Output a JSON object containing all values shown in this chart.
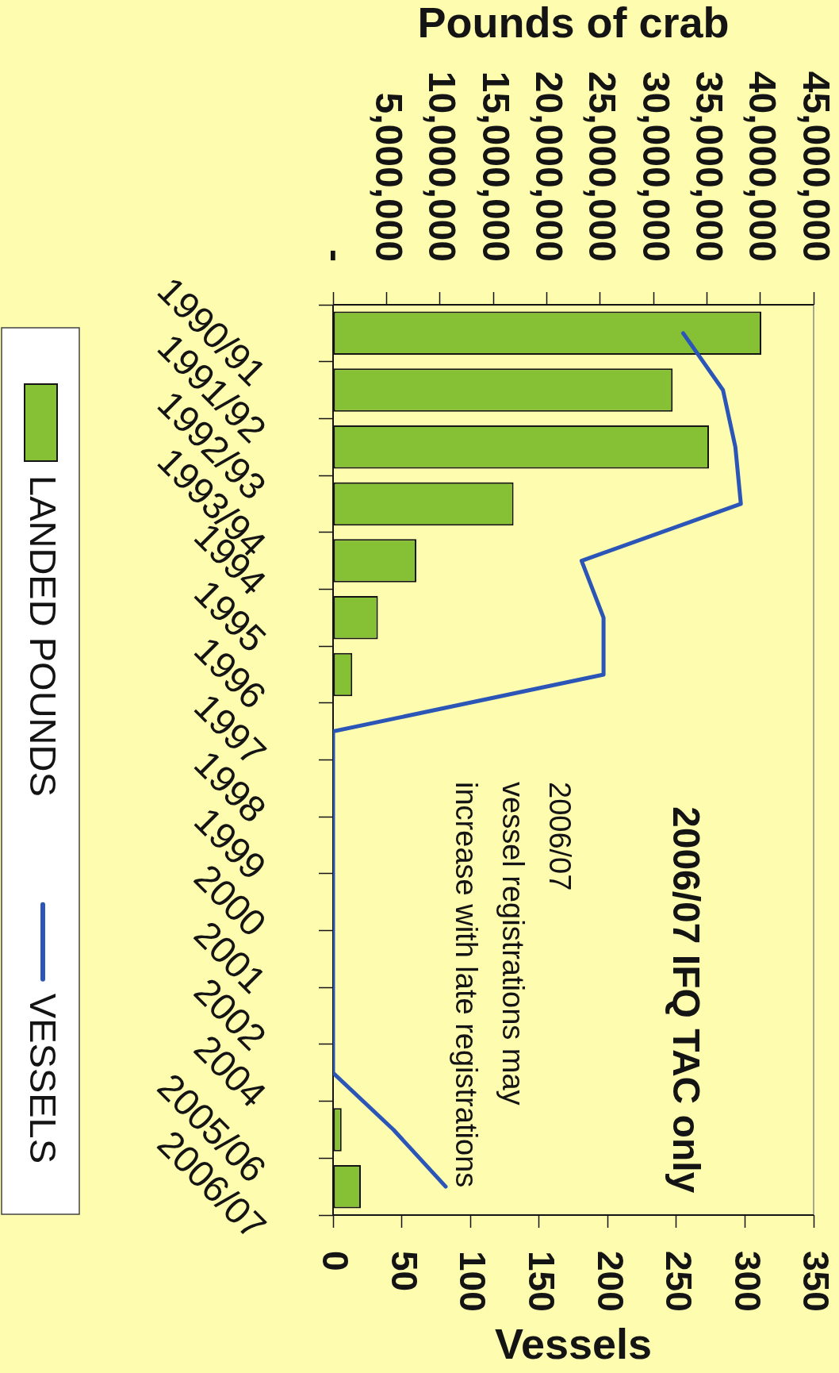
{
  "chart_data": {
    "type": "bar",
    "orientation": "horizontal",
    "categories": [
      "1990/91",
      "1991/92",
      "1992/93",
      "1993/94",
      "1994",
      "1995",
      "1996",
      "1997",
      "1998",
      "1999",
      "2000",
      "2001",
      "2002",
      "2004",
      "2005/06",
      "2006/07"
    ],
    "series": [
      {
        "name": "LANDED POUNDS",
        "type": "bar",
        "axis": "x2",
        "color": "#86c034",
        "values": [
          40100000,
          31800000,
          35200000,
          16900000,
          7800000,
          4200000,
          1800000,
          null,
          null,
          null,
          null,
          null,
          null,
          null,
          800000,
          2600000
        ]
      },
      {
        "name": "VESSELS",
        "type": "line",
        "color": "#2c55b8",
        "values": [
          255,
          284,
          293,
          297,
          181,
          197,
          197,
          0,
          0,
          0,
          0,
          0,
          0,
          0,
          44,
          82
        ]
      }
    ],
    "xlabel": "Vessels",
    "xlim": [
      0,
      350
    ],
    "xticks": [
      0,
      50,
      100,
      150,
      200,
      250,
      300,
      350
    ],
    "x2label": "Pounds of crab",
    "x2lim": [
      0,
      45000000
    ],
    "x2ticks": [
      {
        "value": 0,
        "label": "-"
      },
      {
        "value": 5000000,
        "label": "5,000,000"
      },
      {
        "value": 10000000,
        "label": "10,000,000"
      },
      {
        "value": 15000000,
        "label": "15,000,000"
      },
      {
        "value": 20000000,
        "label": "20,000,000"
      },
      {
        "value": 25000000,
        "label": "25,000,000"
      },
      {
        "value": 30000000,
        "label": "30,000,000"
      },
      {
        "value": 35000000,
        "label": "35,000,000"
      },
      {
        "value": 40000000,
        "label": "40,000,000"
      },
      {
        "value": 45000000,
        "label": "45,000,000"
      }
    ],
    "legend": "left",
    "annotations": [
      "2006/07 IFQ TAC only",
      "2006/07\nvessel registrations may\nincrease with late registrations"
    ]
  }
}
